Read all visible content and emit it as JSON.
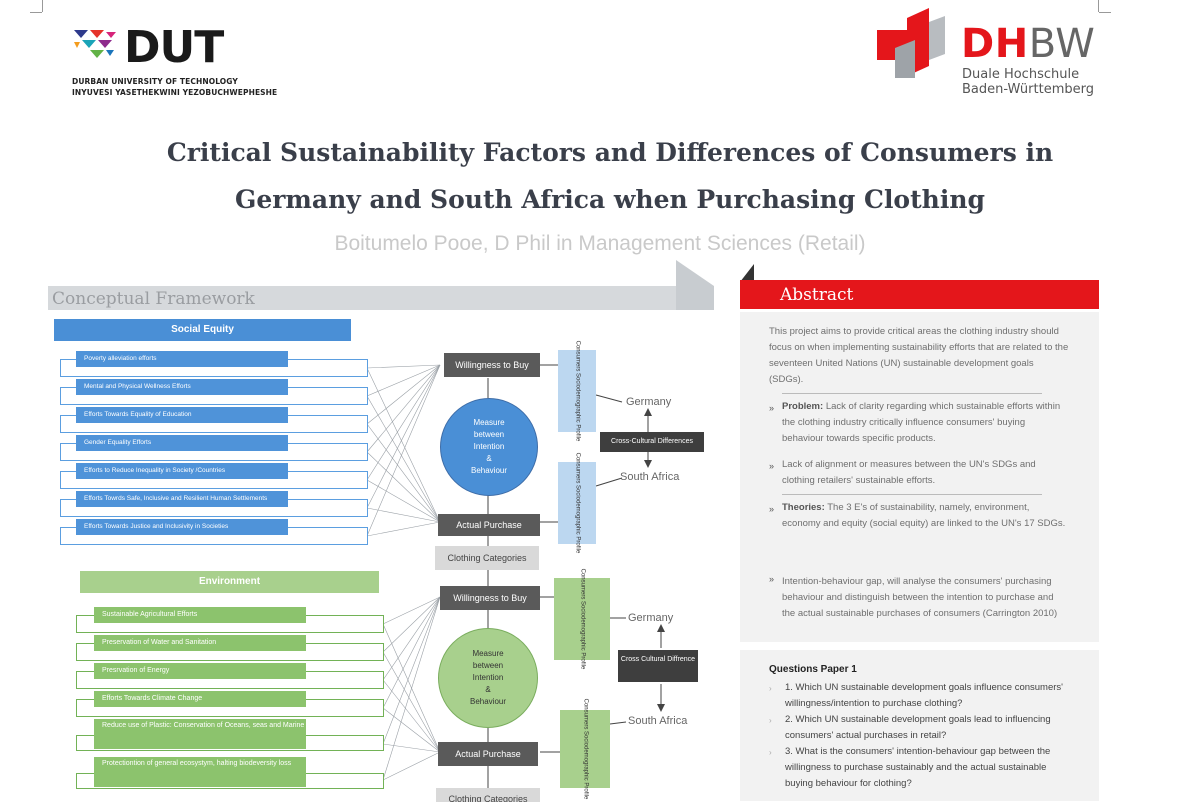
{
  "logos": {
    "dut": {
      "wordmark": "DUT",
      "line1": "DURBAN UNIVERSITY OF TECHNOLOGY",
      "line2": "INYUVESI YASETHEKWINI YEZOBUCHWEPHESHE"
    },
    "dhbw": {
      "wordmark_red": "DH",
      "wordmark_grey": "BW",
      "line1": "Duale Hochschule",
      "line2": "Baden-Württemberg"
    }
  },
  "poster": {
    "title_line1": "Critical Sustainability Factors and Differences of Consumers in",
    "title_line2": "Germany and South Africa when Purchasing Clothing",
    "author": "Boitumelo Pooe, D Phil in Management Sciences (Retail)"
  },
  "framework": {
    "header": "Conceptual Framework",
    "social": {
      "title": "Social Equity",
      "items": [
        "Poverty alleviation efforts",
        "Mental and Physical Wellness Efforts",
        "Efforts Towards Equality of Education",
        "Gender Equality Efforts",
        "Efforts to Reduce Inequality in Society /Countries",
        "Efforts Towrds Safe, Inclusive and Resilient Human Settlements",
        "Efforts Towards Justice and Inclusivity in Societies"
      ],
      "willingness": "Willingness to Buy",
      "measure": [
        "Measure",
        "between",
        "Intention",
        "&",
        "Behaviour"
      ],
      "actual": "Actual Purchase",
      "categories": "Clothing Categories",
      "profile": "Consumers Sociodemographic Profile",
      "germany": "Germany",
      "south_africa": "South Africa",
      "cross_cultural": "Cross-Cultural Differences"
    },
    "environment": {
      "title": "Environment",
      "items": [
        "Sustainable Agricultural Efforts",
        "Preservation of Water and Sanitation",
        "Presrvation of Energy",
        "Efforts Towards Climate Change",
        "Reduce use of Plastic: Conservation of Oceans, seas and Marine",
        "Protectiontion of general ecosystym, halting biodeversity loss"
      ],
      "willingness": "Willingness to Buy",
      "measure": [
        "Measure",
        "between",
        "Intention",
        "&",
        "Behaviour"
      ],
      "actual": "Actual Purchase",
      "categories": "Clothing Categories",
      "profile": "Consumers Sociodemographic Profile",
      "germany": "Germany",
      "south_africa": "South Africa",
      "cross_cultural": "Cross Cultural Diffrence"
    }
  },
  "abstract": {
    "header": "Abstract",
    "intro": "This project aims to provide critical areas the clothing industry should focus on when implementing sustainability efforts that are related to the seventeen United Nations (UN) sustainable development goals (SDGs).",
    "problem_label": "Problem:",
    "problem": " Lack of clarity regarding which sustainable efforts within the clothing industry critically influence consumers' buying behaviour towards specific products.",
    "alignment": "Lack of alignment or measures between the UN's SDGs and clothing retailers' sustainable efforts.",
    "theories_label": "Theories:",
    "theories": " The 3 E's of sustainability, namely, environment, economy and equity (social equity) are linked to the UN's 17 SDGs.",
    "gap": "Intention-behaviour gap, will analyse the consumers' purchasing behaviour and distinguish between the intention to purchase and the actual sustainable purchases of consumers (Carrington 2010)",
    "bullet": "»"
  },
  "questions": {
    "title": "Questions Paper 1",
    "items": [
      "1. Which UN sustainable development goals influence consumers' willingness/intention to purchase clothing?",
      "2. Which UN sustainable development goals lead to influencing consumers' actual purchases in retail?",
      "3. What is the consumers' intention-behaviour gap between the willingness to purchase sustainably and the actual sustainable buying behaviour for clothing?"
    ]
  },
  "colors": {
    "red": "#e4161b",
    "blue": "#4a8fd6",
    "green": "#a8d08d",
    "title": "#3a3f4a"
  }
}
